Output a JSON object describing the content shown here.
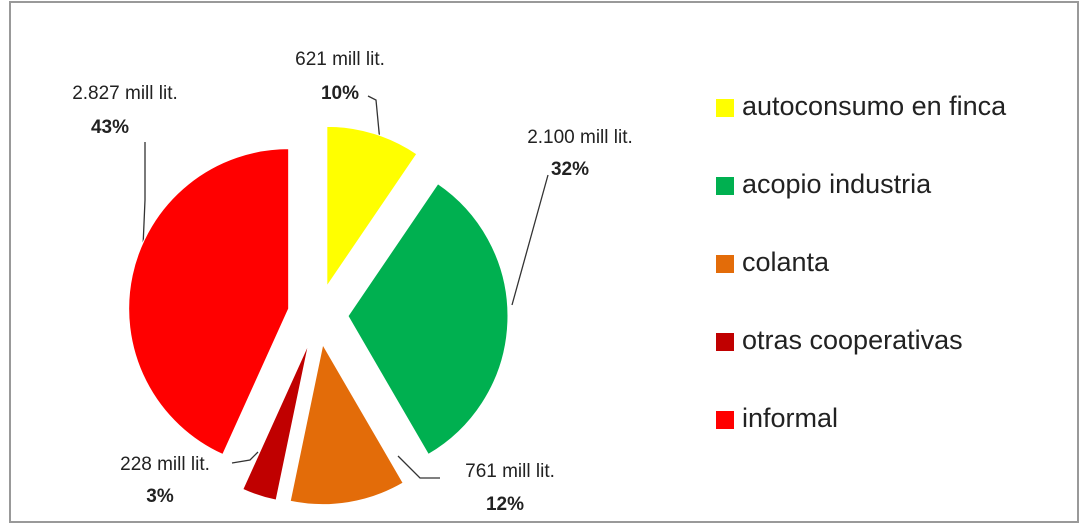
{
  "chart_data": {
    "type": "pie",
    "categories": [
      "autoconsumo en finca",
      "acopio industria",
      "colanta",
      "otras cooperativas",
      "informal"
    ],
    "values": [
      621,
      2100,
      761,
      228,
      2827
    ],
    "value_labels": [
      "621 mill lit.",
      "2.100 mill lit.",
      "761 mill lit.",
      "228 mill lit.",
      "2.827 mill lit."
    ],
    "shares": [
      10,
      32,
      12,
      3,
      43
    ],
    "share_labels": [
      "10%",
      "32%",
      "12%",
      "3%",
      "43%"
    ],
    "colors": [
      "#ffff00",
      "#00b050",
      "#e36c09",
      "#c00000",
      "#ff0000"
    ],
    "legend": "right"
  }
}
